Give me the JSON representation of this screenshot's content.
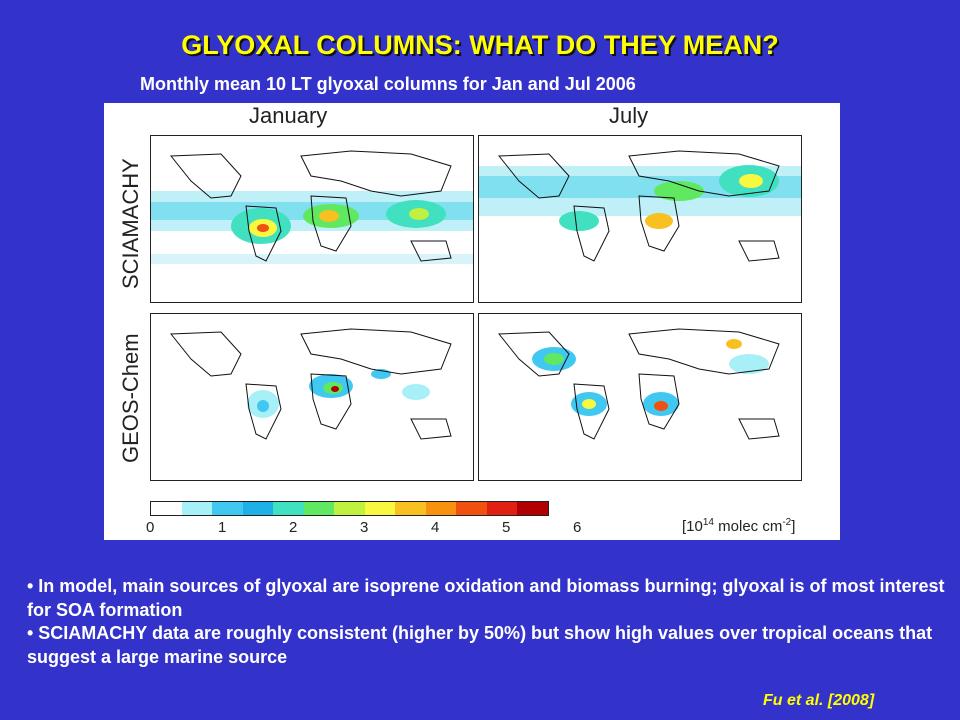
{
  "slide": {
    "title": "GLYOXAL COLUMNS: WHAT DO THEY MEAN?",
    "subtitle": "Monthly mean 10 LT glyoxal columns for Jan and Jul 2006",
    "bullets": [
      "• In model, main sources of glyoxal are isoprene oxidation and biomass burning; glyoxal is of most interest for SOA formation",
      "• SCIAMACHY data are roughly consistent (higher by 50%) but show high values over tropical oceans that suggest a large marine source"
    ],
    "citation": "Fu et al. [2008]"
  },
  "figure": {
    "columns": [
      "January",
      "July"
    ],
    "rows": [
      "SCIAMACHY",
      "GEOS-Chem"
    ],
    "colorbar": {
      "ticks": [
        "0",
        "1",
        "2",
        "3",
        "4",
        "5",
        "6"
      ],
      "units_prefix": "[10",
      "units_exp": "14",
      "units_suffix": " molec cm",
      "units_exp2": "-2",
      "units_close": "]",
      "colors": [
        "#ffffff",
        "#a8f0f8",
        "#40c8f0",
        "#20b0e8",
        "#40e0c0",
        "#60e860",
        "#c0f040",
        "#f8f840",
        "#f8c020",
        "#f89010",
        "#f05010",
        "#e02010",
        "#b00000"
      ]
    }
  }
}
